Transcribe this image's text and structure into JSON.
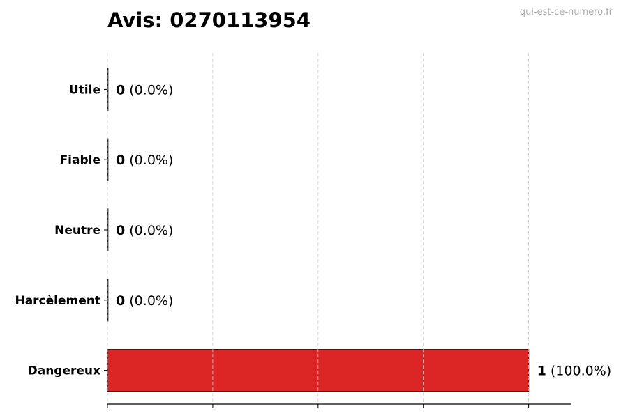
{
  "title": "Avis: 0270113954",
  "watermark": "qui-est-ce-numero.fr",
  "chart_data": {
    "type": "bar",
    "orientation": "horizontal",
    "title": "Avis: 0270113954",
    "categories": [
      "Utile",
      "Fiable",
      "Neutre",
      "Harcèlement",
      "Dangereux"
    ],
    "values": [
      0,
      0,
      0,
      0,
      1
    ],
    "data_labels": [
      {
        "count": "0",
        "pct": "(0.0%)"
      },
      {
        "count": "0",
        "pct": "(0.0%)"
      },
      {
        "count": "0",
        "pct": "(0.0%)"
      },
      {
        "count": "0",
        "pct": "(0.0%)"
      },
      {
        "count": "1",
        "pct": "(100.0%)"
      }
    ],
    "xlim": [
      0,
      1.1
    ],
    "x_gridlines": [
      0,
      0.25,
      0.5,
      0.75,
      1
    ],
    "grid": true,
    "xlabel": "",
    "ylabel": "",
    "bar_color": "#dc2626",
    "edge_color": "#222222"
  }
}
